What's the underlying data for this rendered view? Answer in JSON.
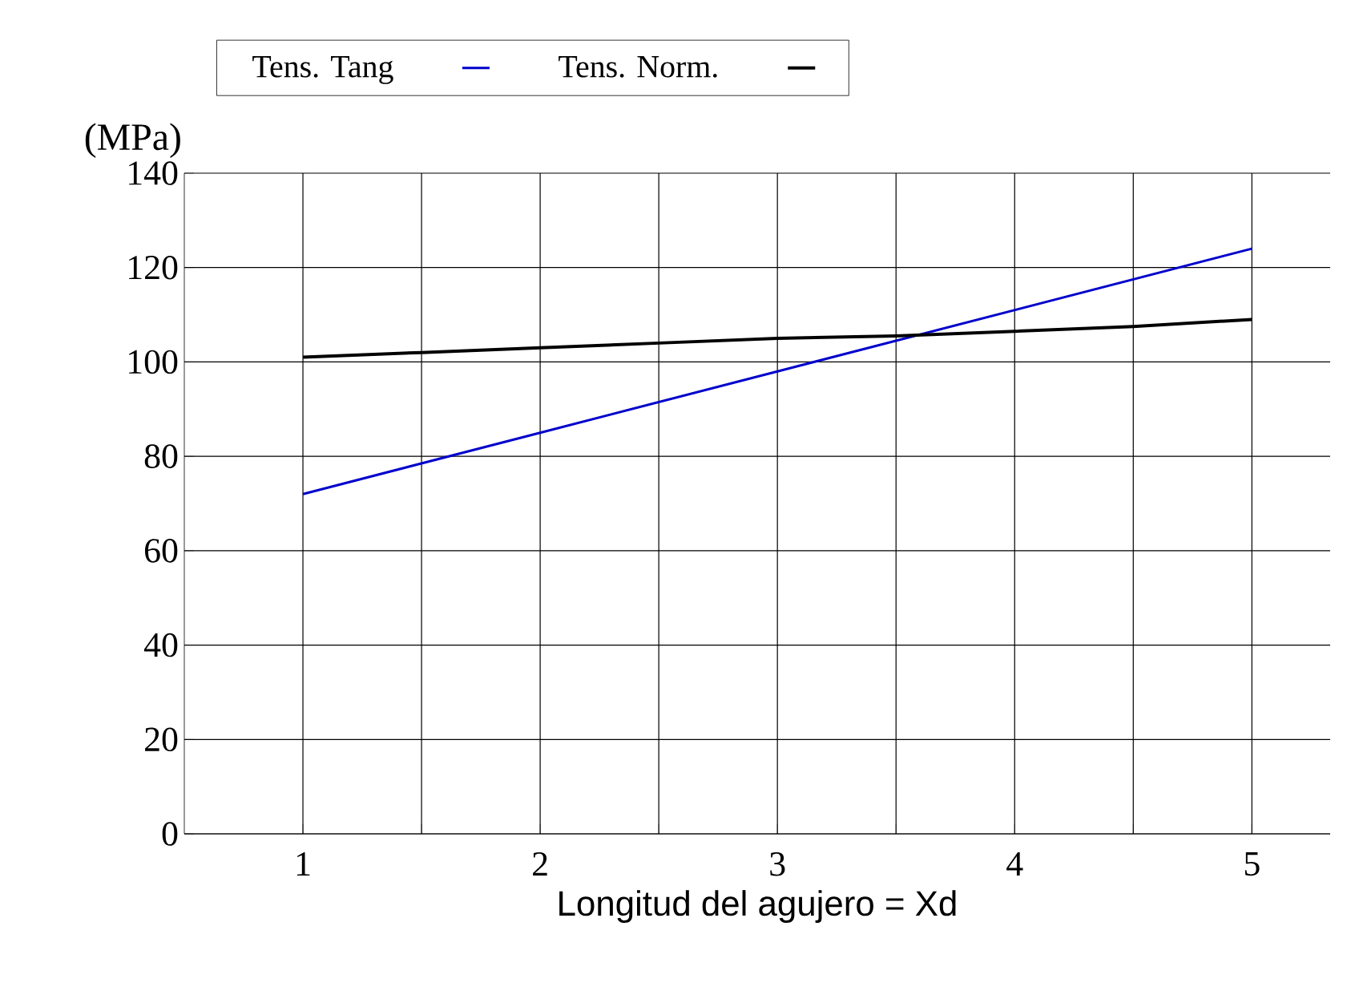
{
  "chart_data": {
    "type": "line",
    "xlabel": "Longitud del agujero = Xd",
    "ylabel": "(MPa)",
    "xlim": [
      0.5,
      5.33
    ],
    "ylim": [
      0,
      140
    ],
    "xticks": [
      1,
      {
        "value": 1.5,
        "label": null
      },
      2,
      {
        "value": 2.5,
        "label": null
      },
      3,
      {
        "value": 3.5,
        "label": null
      },
      4,
      {
        "value": 4.5,
        "label": null
      },
      5
    ],
    "yticks": [
      0,
      20,
      40,
      60,
      80,
      100,
      120,
      140
    ],
    "grid": true,
    "legend": "top",
    "marker": "none",
    "line_style": "solid",
    "series": [
      {
        "name": "Tens. Tang",
        "color": "#0000cc",
        "x": [
          1,
          2,
          3,
          4,
          5
        ],
        "values": [
          72,
          85,
          98,
          111,
          124
        ]
      },
      {
        "name": "Tens. Norm.",
        "color": "#000000",
        "x": [
          1,
          1.5,
          2,
          2.5,
          3,
          3.5,
          4,
          4.5,
          5
        ],
        "values": [
          101,
          102,
          103,
          104,
          105,
          105.5,
          106.5,
          107.5,
          109
        ]
      }
    ]
  }
}
